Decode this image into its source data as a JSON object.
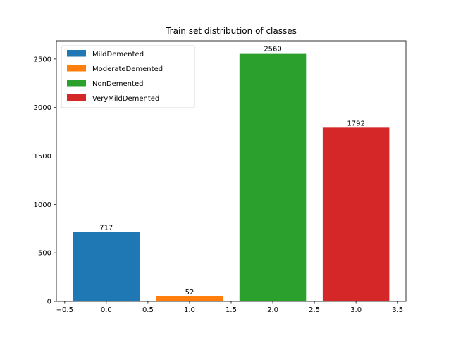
{
  "chart_data": {
    "type": "bar",
    "title": "Train set distribution of classes",
    "xlabel": "",
    "ylabel": "",
    "x": [
      0,
      1,
      2,
      3
    ],
    "bar_width": 0.8,
    "series": [
      {
        "name": "MildDemented",
        "x": 0,
        "value": 717,
        "color": "#1f77b4"
      },
      {
        "name": "ModerateDemented",
        "x": 1,
        "value": 52,
        "color": "#ff7f0e"
      },
      {
        "name": "NonDemented",
        "x": 2,
        "value": 2560,
        "color": "#2ca02c"
      },
      {
        "name": "VeryMildDemented",
        "x": 3,
        "value": 1792,
        "color": "#d62728"
      }
    ],
    "xlim": [
      -0.6,
      3.6
    ],
    "ylim": [
      0,
      2688
    ],
    "xticks": [
      -0.5,
      0.0,
      0.5,
      1.0,
      1.5,
      2.0,
      2.5,
      3.0,
      3.5
    ],
    "xtick_labels": [
      "−0.5",
      "0.0",
      "0.5",
      "1.0",
      "1.5",
      "2.0",
      "2.5",
      "3.0",
      "3.5"
    ],
    "yticks": [
      0,
      500,
      1000,
      1500,
      2000,
      2500
    ],
    "ytick_labels": [
      "0",
      "500",
      "1000",
      "1500",
      "2000",
      "2500"
    ],
    "grid": false,
    "legend_position": "top-left"
  }
}
